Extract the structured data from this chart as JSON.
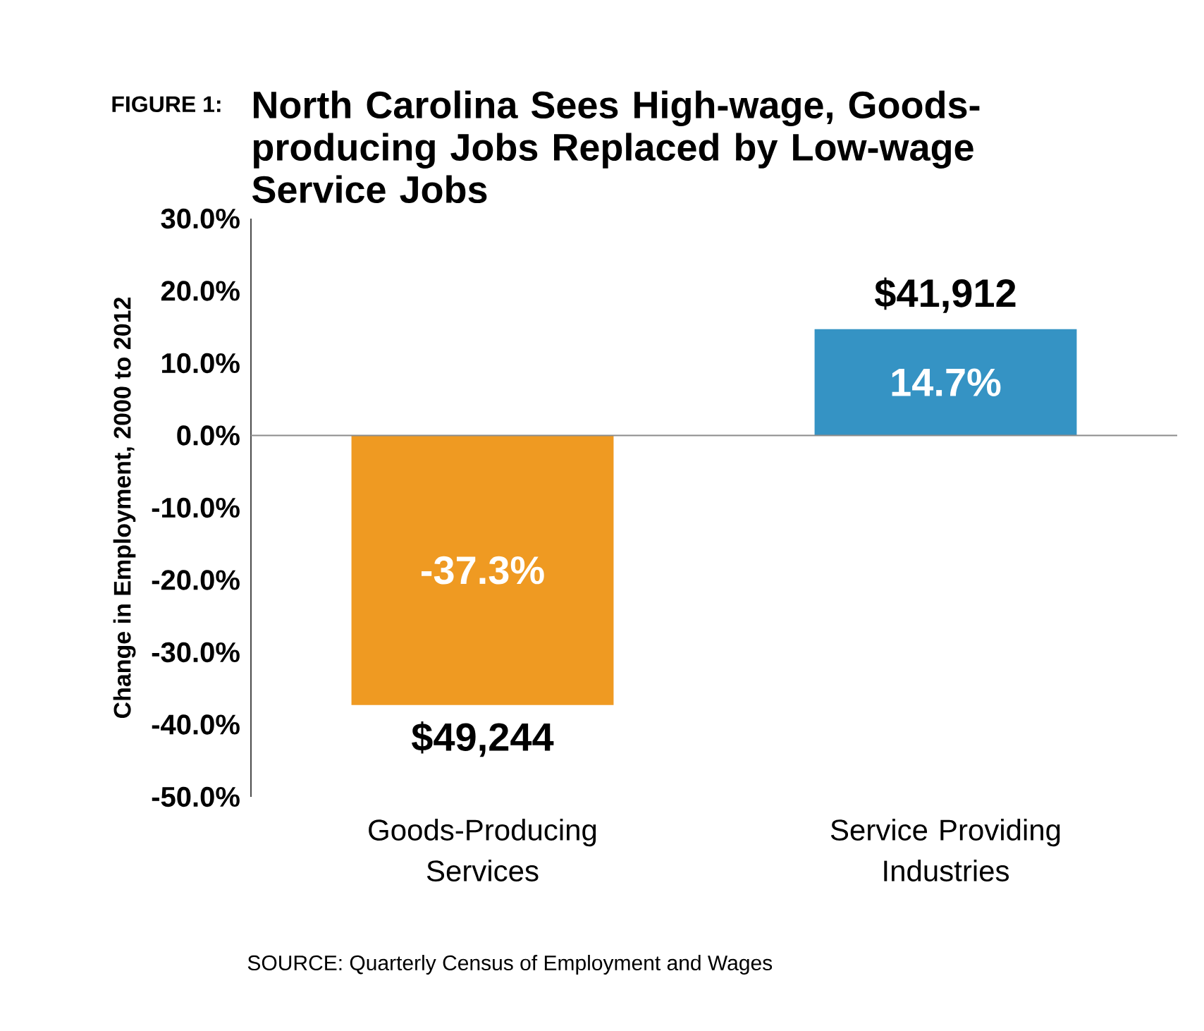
{
  "chart_data": {
    "type": "bar",
    "title": "North Carolina Sees High-wage, Goods-producing Jobs Replaced by Low-wage Service Jobs",
    "ylabel": "Change in Employment, 2000 to 2012",
    "categories": [
      "Goods-Producing Services",
      "Service Providing Industries"
    ],
    "values": [
      -37.3,
      14.7
    ],
    "colors": [
      "#ef9a22",
      "#3593c4"
    ],
    "value_labels": [
      "-37.3%",
      "14.7%"
    ],
    "ylim": [
      -50,
      30
    ],
    "yticks": [
      {
        "value": 30,
        "label": "30.0%"
      },
      {
        "value": 20,
        "label": "20.0%"
      },
      {
        "value": 10,
        "label": "10.0%"
      },
      {
        "value": 0,
        "label": "0.0%"
      },
      {
        "value": -10,
        "label": "-10.0%"
      },
      {
        "value": -20,
        "label": "-20.0%"
      },
      {
        "value": -30,
        "label": "-30.0%"
      },
      {
        "value": -40,
        "label": "-40.0%"
      },
      {
        "value": -50,
        "label": "-50.0%"
      }
    ],
    "annotations": [
      "FIGURE 1:",
      {
        "text": "$49,244",
        "x": "Goods-Producing Services",
        "y": -37.3
      },
      {
        "text": "$41,912",
        "x": "Service Providing Industries",
        "y": 14.7
      },
      "SOURCE: Quarterly Census of Employment and Wages"
    ]
  }
}
